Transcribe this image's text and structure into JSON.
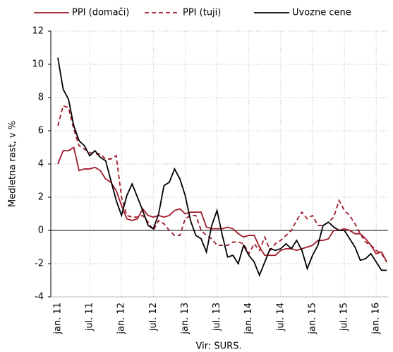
{
  "chart_data": {
    "type": "line",
    "y_label": "Medletna rast, v %",
    "source": "Vir: SURS.",
    "categories": [
      "jan. 11",
      null,
      null,
      null,
      null,
      null,
      "jul. 11",
      null,
      null,
      null,
      null,
      null,
      "jan. 12",
      null,
      null,
      null,
      null,
      null,
      "jul. 12",
      null,
      null,
      null,
      null,
      null,
      "jan. 13",
      null,
      null,
      null,
      null,
      null,
      "jul. 13",
      null,
      null,
      null,
      null,
      null,
      "jan. 14",
      null,
      null,
      null,
      null,
      null,
      "jul. 14",
      null,
      null,
      null,
      null,
      null,
      "jan. 15",
      null,
      null,
      null,
      null,
      null,
      "jul. 15",
      null,
      null,
      null,
      null,
      null,
      "jan. 16",
      null,
      null
    ],
    "series": [
      {
        "name": "PPI (domači)",
        "color": "#a0192a",
        "dash": false,
        "values": [
          4.0,
          4.8,
          4.8,
          5.0,
          3.6,
          3.7,
          3.7,
          3.8,
          3.6,
          3.1,
          2.9,
          2.4,
          1.5,
          0.7,
          0.6,
          0.7,
          1.3,
          0.9,
          0.8,
          0.9,
          0.8,
          0.9,
          1.2,
          1.3,
          1.0,
          1.1,
          1.1,
          1.1,
          0.2,
          0.1,
          0.1,
          0.1,
          0.2,
          0.1,
          -0.2,
          -0.4,
          -0.3,
          -0.3,
          -1.0,
          -1.5,
          -1.5,
          -1.5,
          -1.2,
          -1.1,
          -1.1,
          -1.2,
          -1.1,
          -1.0,
          -0.9,
          -0.6,
          -0.6,
          -0.5,
          0.0,
          0.0,
          0.1,
          0.0,
          -0.2,
          -0.2,
          -0.5,
          -0.9,
          -1.4,
          -1.3,
          -1.9
        ]
      },
      {
        "name": "PPI (tuji)",
        "color": "#a0192a",
        "dash": true,
        "values": [
          6.3,
          7.5,
          7.4,
          6.1,
          5.1,
          4.9,
          4.7,
          4.6,
          4.6,
          4.3,
          4.3,
          4.5,
          2.0,
          0.9,
          0.8,
          0.8,
          0.9,
          0.5,
          0.0,
          0.6,
          0.4,
          0.0,
          -0.3,
          -0.3,
          0.7,
          0.9,
          0.9,
          0.0,
          -0.3,
          -0.5,
          -0.9,
          -0.9,
          -0.9,
          -0.7,
          -0.7,
          -0.8,
          -1.4,
          -0.8,
          -1.2,
          -0.4,
          -1.2,
          -0.8,
          -0.6,
          -0.3,
          0.0,
          0.6,
          1.1,
          0.7,
          0.9,
          0.3,
          0.3,
          0.5,
          0.8,
          1.8,
          1.2,
          0.9,
          0.4,
          -0.2,
          -0.7,
          -0.9,
          -1.2,
          -1.4,
          -1.9
        ]
      },
      {
        "name": "Uvozne cene",
        "color": "#000000",
        "dash": false,
        "values": [
          10.4,
          8.5,
          7.9,
          6.3,
          5.4,
          5.1,
          4.5,
          4.8,
          4.4,
          4.2,
          3.0,
          1.8,
          0.9,
          2.1,
          2.8,
          2.0,
          1.2,
          0.3,
          0.1,
          1.0,
          2.7,
          2.9,
          3.7,
          3.1,
          2.1,
          0.6,
          -0.3,
          -0.5,
          -1.3,
          0.3,
          1.2,
          -0.3,
          -1.6,
          -1.5,
          -2.0,
          -0.9,
          -1.5,
          -1.9,
          -2.7,
          -1.9,
          -1.1,
          -1.2,
          -1.1,
          -0.8,
          -1.1,
          -0.6,
          -1.2,
          -2.3,
          -1.5,
          -0.9,
          0.3,
          0.5,
          0.2,
          0.0,
          0.0,
          -0.5,
          -1.0,
          -1.8,
          -1.7,
          -1.4,
          -1.9,
          -2.4,
          -2.4
        ]
      }
    ],
    "ylim": [
      -4,
      12
    ],
    "yticks": [
      -4,
      -2,
      0,
      2,
      4,
      6,
      8,
      10,
      12
    ],
    "grid": true
  }
}
